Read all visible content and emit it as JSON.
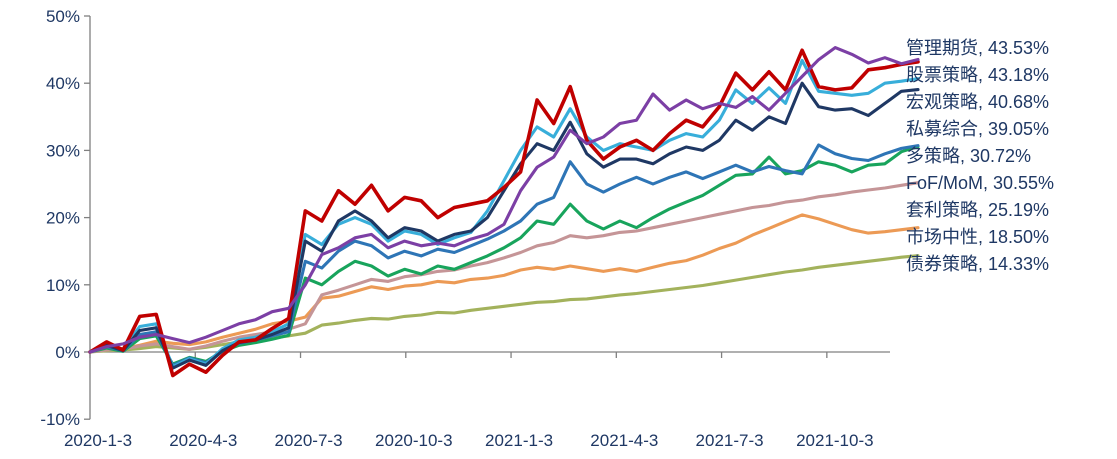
{
  "page": {
    "background": "#FFFFFF"
  },
  "chart_data": {
    "type": "line",
    "title": "",
    "grid": false,
    "legend_position": "end-labels-right",
    "axis_color": "#808080",
    "text_color": "#1F3864",
    "y_axis": {
      "min": -10,
      "max": 50,
      "step": 10,
      "tick_labels": [
        "50%",
        "40%",
        "30%",
        "20%",
        "10%",
        "0%",
        "-10%"
      ]
    },
    "x_axis": {
      "tick_labels": [
        "2020-1-3",
        "2020-4-3",
        "2020-7-3",
        "2020-10-3",
        "2021-1-3",
        "2021-4-3",
        "2021-7-3",
        "2021-10-3"
      ]
    },
    "series": [
      {
        "name": "管理期货",
        "end_value": 43.53,
        "label": "管理期货, 43.53%",
        "color": "#7C3FA5",
        "values": [
          0,
          0.8,
          1.2,
          2.2,
          2.6,
          2.0,
          1.4,
          2.2,
          3.2,
          4.2,
          4.8,
          6.0,
          6.5,
          10.0,
          14.5,
          15.5,
          17.0,
          17.5,
          15.5,
          16.5,
          15.8,
          16.2,
          15.8,
          16.8,
          17.5,
          19.0,
          24.0,
          27.5,
          29.0,
          33.0,
          31.0,
          32.0,
          34.0,
          34.5,
          38.4,
          36.0,
          37.5,
          36.2,
          37.0,
          36.4,
          38.0,
          36.0,
          38.5,
          41.0,
          43.5,
          45.3,
          44.3,
          43.0,
          43.8,
          42.9,
          43.53
        ]
      },
      {
        "name": "股票策略",
        "end_value": 43.18,
        "label": "股票策略, 43.18%",
        "color": "#C00000",
        "values": [
          0,
          1.5,
          0.3,
          5.3,
          5.6,
          -3.5,
          -1.8,
          -3.0,
          -0.5,
          1.5,
          1.8,
          3.5,
          5.0,
          21.0,
          19.5,
          24.0,
          22.0,
          24.8,
          21.0,
          23.0,
          22.5,
          20.0,
          21.5,
          22.0,
          22.5,
          24.5,
          26.8,
          37.5,
          34.0,
          39.5,
          31.5,
          28.7,
          30.5,
          31.5,
          30.0,
          32.5,
          34.5,
          33.5,
          36.5,
          41.5,
          39.0,
          41.7,
          39.0,
          44.9,
          39.5,
          39.0,
          39.3,
          42.0,
          42.3,
          42.8,
          43.18
        ]
      },
      {
        "name": "宏观策略",
        "end_value": 40.68,
        "label": "宏观策略, 40.68%",
        "color": "#38AEDA",
        "values": [
          0,
          1.2,
          0.4,
          3.8,
          4.2,
          -2.2,
          -1.0,
          -1.8,
          0.5,
          1.8,
          2.2,
          3.0,
          4.2,
          17.5,
          16.0,
          19.0,
          20.0,
          19.0,
          16.5,
          18.0,
          17.5,
          16.0,
          17.0,
          17.8,
          21.0,
          25.5,
          30.0,
          33.5,
          32.0,
          36.2,
          32.0,
          30.0,
          31.0,
          30.5,
          30.0,
          31.5,
          32.5,
          32.0,
          34.5,
          39.0,
          37.0,
          39.3,
          37.0,
          43.4,
          38.8,
          38.5,
          38.2,
          38.5,
          40.0,
          40.3,
          40.68
        ]
      },
      {
        "name": "私募综合",
        "end_value": 39.05,
        "label": "私募综合, 39.05%",
        "color": "#1F3864",
        "values": [
          0,
          1.0,
          0.2,
          3.2,
          3.6,
          -2.4,
          -1.2,
          -2.0,
          0.2,
          1.4,
          1.8,
          2.6,
          3.6,
          16.5,
          15.0,
          19.5,
          21.0,
          19.5,
          17.0,
          18.5,
          18.0,
          16.5,
          17.5,
          18.0,
          20.0,
          24.0,
          28.0,
          31.0,
          30.0,
          34.2,
          29.5,
          27.5,
          28.7,
          28.7,
          28.0,
          29.5,
          30.5,
          30.0,
          31.5,
          34.5,
          33.0,
          35.0,
          34.0,
          40.0,
          36.5,
          36.0,
          36.2,
          35.2,
          37.0,
          38.8,
          39.05
        ]
      },
      {
        "name": "多策略",
        "end_value": 30.72,
        "label": "多策略, 30.72%",
        "color": "#2E75B6",
        "values": [
          0,
          0.8,
          0.2,
          2.6,
          3.0,
          -2.0,
          -0.9,
          -1.6,
          0.3,
          1.3,
          1.8,
          2.4,
          3.0,
          13.5,
          12.5,
          15.0,
          16.5,
          15.8,
          14.0,
          15.0,
          14.3,
          15.3,
          14.8,
          15.8,
          16.8,
          18.0,
          19.5,
          22.0,
          23.0,
          28.3,
          25.0,
          23.8,
          25.0,
          26.0,
          25.0,
          26.0,
          26.8,
          25.8,
          26.8,
          27.8,
          26.8,
          27.6,
          27.0,
          26.5,
          30.8,
          29.5,
          28.8,
          28.5,
          29.5,
          30.3,
          30.72
        ]
      },
      {
        "name": "FoF/MoM",
        "end_value": 30.55,
        "label": "FoF/MoM, 30.55%",
        "color": "#18A45C",
        "values": [
          0,
          0.6,
          0.1,
          2.0,
          2.4,
          -1.8,
          -0.8,
          -1.4,
          0.1,
          1.0,
          1.4,
          1.9,
          2.5,
          11.0,
          10.0,
          12.0,
          13.5,
          12.8,
          11.3,
          12.3,
          11.6,
          12.8,
          12.3,
          13.3,
          14.3,
          15.5,
          17.0,
          19.5,
          19.0,
          22.0,
          19.5,
          18.3,
          19.5,
          18.5,
          20.0,
          21.3,
          22.3,
          23.3,
          24.8,
          26.3,
          26.5,
          29.0,
          26.5,
          27.0,
          28.3,
          27.8,
          26.8,
          27.8,
          28.0,
          29.8,
          30.55
        ]
      },
      {
        "name": "套利策略",
        "end_value": 25.19,
        "label": "套利策略, 25.19%",
        "color": "#C59597",
        "values": [
          0,
          0.3,
          0.4,
          0.9,
          1.2,
          0.8,
          0.4,
          0.9,
          1.6,
          2.2,
          2.6,
          3.0,
          3.4,
          4.2,
          8.5,
          9.2,
          10.0,
          10.8,
          10.5,
          11.2,
          11.5,
          12.0,
          12.2,
          12.8,
          13.3,
          14.0,
          14.8,
          15.8,
          16.3,
          17.3,
          17.0,
          17.3,
          17.8,
          18.0,
          18.5,
          19.0,
          19.5,
          20.0,
          20.5,
          21.0,
          21.5,
          21.8,
          22.3,
          22.6,
          23.1,
          23.4,
          23.8,
          24.1,
          24.4,
          24.8,
          25.19
        ]
      },
      {
        "name": "市场中性",
        "end_value": 18.5,
        "label": "市场中性, 18.50%",
        "color": "#EC9A55",
        "values": [
          0,
          0.4,
          0.5,
          1.0,
          1.6,
          1.3,
          1.1,
          1.5,
          2.2,
          2.8,
          3.4,
          4.2,
          4.6,
          5.2,
          8.0,
          8.3,
          9.0,
          9.7,
          9.3,
          9.8,
          10.0,
          10.5,
          10.3,
          10.8,
          11.0,
          11.4,
          12.2,
          12.6,
          12.3,
          12.8,
          12.4,
          12.0,
          12.4,
          12.0,
          12.6,
          13.2,
          13.6,
          14.4,
          15.4,
          16.2,
          17.4,
          18.4,
          19.4,
          20.4,
          19.8,
          19.0,
          18.2,
          17.7,
          17.9,
          18.2,
          18.5
        ]
      },
      {
        "name": "债券策略",
        "end_value": 14.33,
        "label": "债券策略, 14.33%",
        "color": "#A3B25C",
        "values": [
          0,
          0.2,
          0.3,
          0.5,
          0.8,
          0.6,
          0.4,
          0.7,
          1.1,
          1.5,
          1.8,
          2.1,
          2.4,
          2.8,
          4.0,
          4.3,
          4.7,
          5.0,
          4.9,
          5.3,
          5.5,
          5.9,
          5.8,
          6.2,
          6.5,
          6.8,
          7.1,
          7.4,
          7.5,
          7.8,
          7.9,
          8.2,
          8.5,
          8.7,
          9.0,
          9.3,
          9.6,
          9.9,
          10.3,
          10.7,
          11.1,
          11.5,
          11.9,
          12.2,
          12.6,
          12.9,
          13.2,
          13.5,
          13.8,
          14.1,
          14.33
        ]
      }
    ]
  }
}
